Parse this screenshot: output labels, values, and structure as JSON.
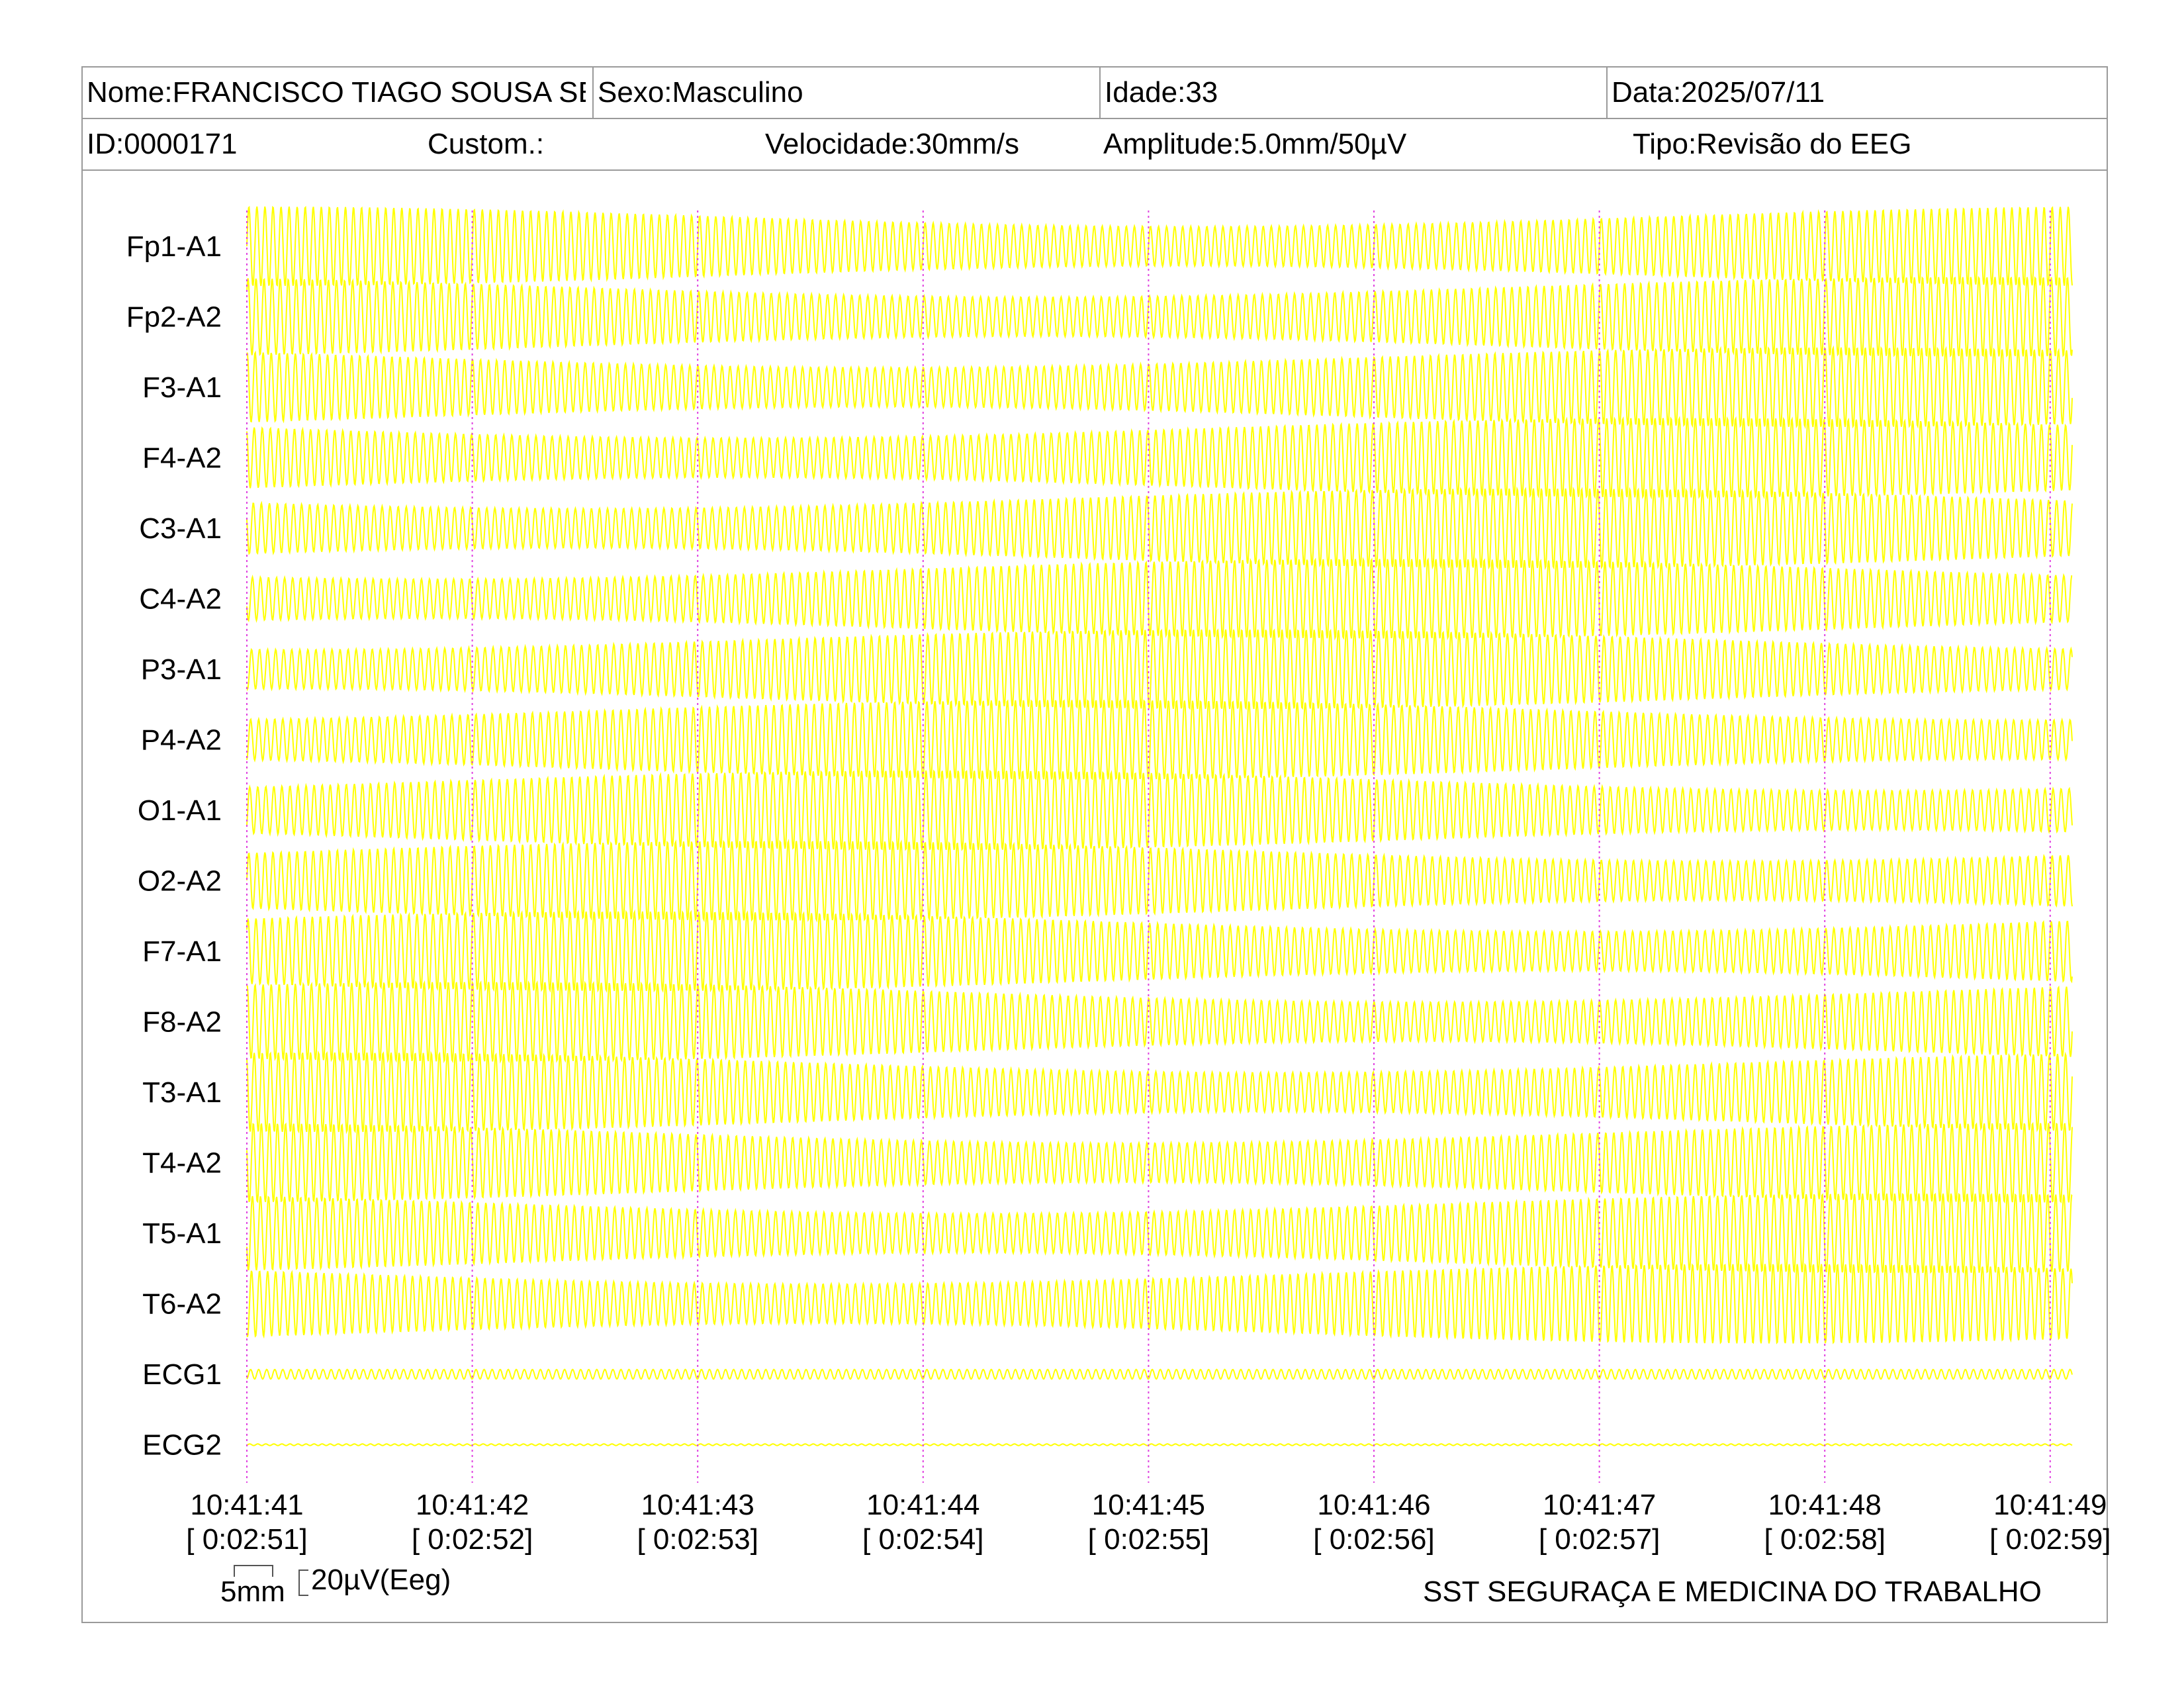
{
  "header": {
    "nome": "Nome:FRANCISCO TIAGO SOUSA SE",
    "sexo": "Sexo:Masculino",
    "idade": "Idade:33",
    "data": "Data:2025/07/11",
    "id": "ID:0000171",
    "custom": "Custom.:",
    "velocidade": "Velocidade:30mm/s",
    "amplitude": "Amplitude:5.0mm/50µV",
    "tipo": "Tipo:Revisão do EEG"
  },
  "chart_data": {
    "type": "line",
    "title": "",
    "channels": [
      "Fp1-A1",
      "Fp2-A2",
      "F3-A1",
      "F4-A2",
      "C3-A1",
      "C4-A2",
      "P3-A1",
      "P4-A2",
      "O1-A1",
      "O2-A2",
      "F7-A1",
      "F8-A2",
      "T3-A1",
      "T4-A2",
      "T5-A1",
      "T6-A2",
      "ECG1",
      "ECG2"
    ],
    "x_ticks": [
      "10:41:41",
      "10:41:42",
      "10:41:43",
      "10:41:44",
      "10:41:45",
      "10:41:46",
      "10:41:47",
      "10:41:48",
      "10:41:49"
    ],
    "x_ticks_relative": [
      "[ 0:02:51]",
      "[ 0:02:52]",
      "[ 0:02:53]",
      "[ 0:02:54]",
      "[ 0:02:55]",
      "[ 0:02:56]",
      "[ 0:02:57]",
      "[ 0:02:58]",
      "[ 0:02:59]"
    ],
    "xlim_seconds": [
      0,
      8.1
    ],
    "oscillation_hz": 28,
    "eeg_amplitude_uV": 50,
    "ecg1_amplitude_uV": 6,
    "ecg2_amplitude_uV": 1,
    "sensitivity": "5.0mm/50µV",
    "paper_speed": "30mm/s",
    "grid": "vertical dotted lines at each second",
    "colors": {
      "trace": "#ffff00",
      "second_marker": "#e040e0",
      "border": "#9a9a9a"
    }
  },
  "calibration": {
    "time_scale": "5mm",
    "amplitude_scale": "20µV(Eeg)"
  },
  "footer": {
    "company": "SST SEGURAÇA E MEDICINA DO TRABALHO"
  }
}
